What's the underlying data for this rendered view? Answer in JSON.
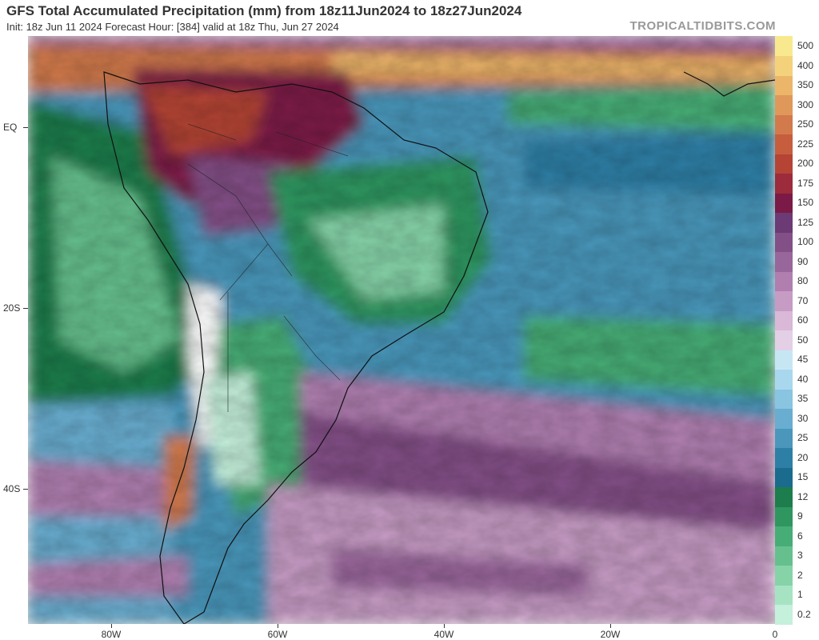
{
  "header": {
    "title": "GFS Total Accumulated Precipitation (mm) from 18z11Jun2024 to 18z27Jun2024",
    "subtitle": "Init: 18z Jun 11 2024   Forecast Hour: [384]   valid at 18z Thu, Jun 27 2024",
    "credit": "TROPICALTIDBITS.COM"
  },
  "map": {
    "lat_labels": [
      "EQ",
      "20S",
      "40S"
    ],
    "lon_labels": [
      "80W",
      "60W",
      "40W",
      "20W",
      "0"
    ]
  },
  "colorbar": {
    "levels": [
      "0.2",
      "1",
      "2",
      "3",
      "6",
      "9",
      "12",
      "15",
      "20",
      "25",
      "30",
      "35",
      "40",
      "45",
      "50",
      "60",
      "70",
      "80",
      "90",
      "100",
      "125",
      "150",
      "175",
      "200",
      "225",
      "250",
      "300",
      "350",
      "400",
      "500"
    ],
    "colors": [
      "#c5f0db",
      "#a6e3c3",
      "#86d3a8",
      "#66c08e",
      "#47ad76",
      "#2f9660",
      "#1d7d4c",
      "#1a6b8e",
      "#2e7fa6",
      "#4a97bb",
      "#69add0",
      "#89c4e1",
      "#a9d8ee",
      "#c7e6f4",
      "#e3cfe6",
      "#d9b8d8",
      "#c69bc4",
      "#b07fb0",
      "#99669b",
      "#834f87",
      "#6c3a74",
      "#7b1a46",
      "#9c2b3b",
      "#b54435",
      "#c65e3e",
      "#d27a4c",
      "#e0985a",
      "#ecb66a",
      "#f4d27c",
      "#f8e98f"
    ]
  }
}
